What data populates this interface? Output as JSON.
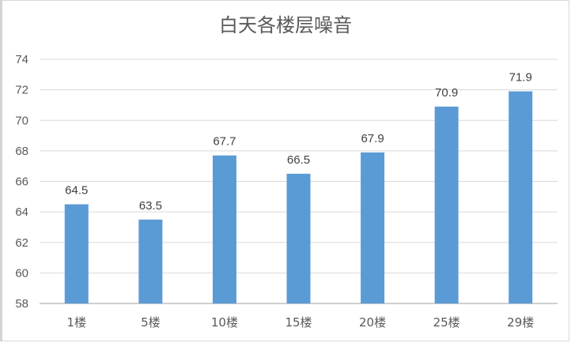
{
  "chart_data": {
    "type": "bar",
    "title": "白天各楼层噪音",
    "categories": [
      "1楼",
      "5楼",
      "10楼",
      "15楼",
      "20楼",
      "25楼",
      "29楼"
    ],
    "values": [
      64.5,
      63.5,
      67.7,
      66.5,
      67.9,
      70.9,
      71.9
    ],
    "data_labels": [
      "64.5",
      "63.5",
      "67.7",
      "66.5",
      "67.9",
      "70.9",
      "71.9"
    ],
    "xlabel": "",
    "ylabel": "",
    "ylim": [
      58,
      74
    ],
    "yticks": [
      58,
      60,
      62,
      64,
      66,
      68,
      70,
      72,
      74
    ],
    "grid": true,
    "legend": "none",
    "bar_color": "#5b9bd5",
    "grid_color": "#d9d9d9"
  }
}
